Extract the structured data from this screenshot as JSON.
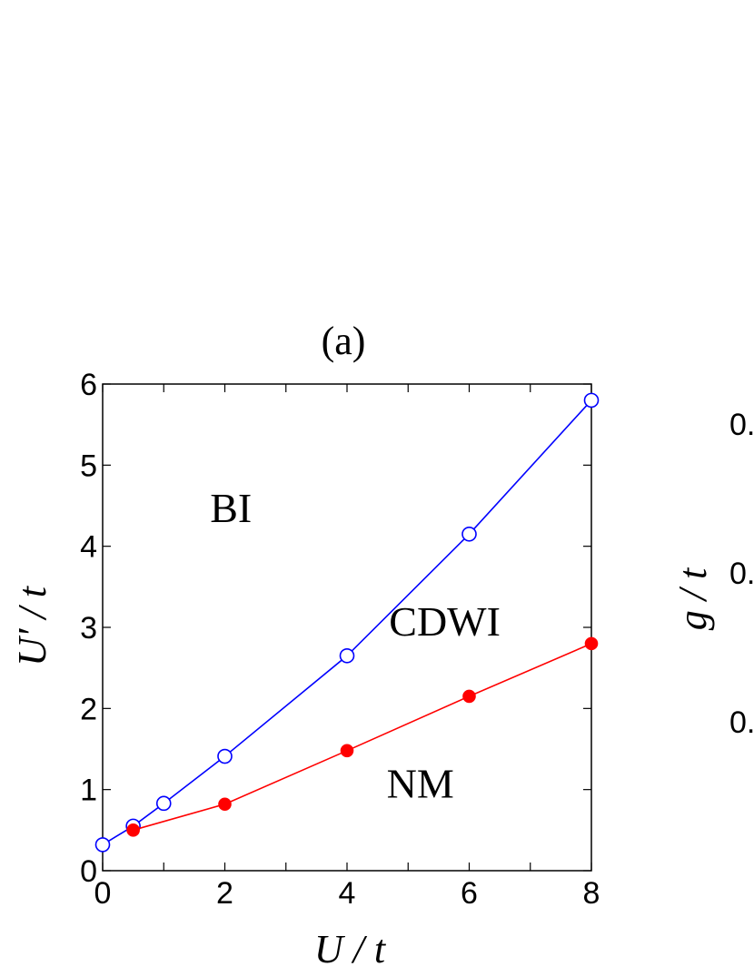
{
  "chart_data": {
    "type": "line",
    "panel_label": "(a)",
    "xlabel": "U / t",
    "ylabel": "U′ / t",
    "xlim": [
      0,
      8
    ],
    "ylim": [
      0,
      6
    ],
    "xticks": [
      0,
      2,
      4,
      6,
      8
    ],
    "yticks": [
      0,
      1,
      2,
      3,
      4,
      5,
      6
    ],
    "x_minor_ticks": [
      1,
      3,
      5,
      7
    ],
    "grid": false,
    "series": [
      {
        "color": "#0000ff",
        "marker": "open-circle",
        "x": [
          0,
          0.5,
          1,
          2,
          4,
          6,
          8
        ],
        "y": [
          0.32,
          0.55,
          0.83,
          1.41,
          2.65,
          4.15,
          5.8
        ]
      },
      {
        "color": "#ff0000",
        "marker": "filled-circle",
        "x": [
          0.5,
          2,
          4,
          6,
          8
        ],
        "y": [
          0.5,
          0.82,
          1.48,
          2.15,
          2.8
        ]
      }
    ],
    "region_labels": [
      {
        "text": "BI",
        "x": 2.1,
        "y": 4.3
      },
      {
        "text": "CDWI",
        "x": 5.6,
        "y": 2.9
      },
      {
        "text": "NM",
        "x": 5.2,
        "y": 0.9
      }
    ]
  },
  "right_panel_partial": {
    "ylabel": "g / t",
    "tick_fragments": [
      "0.",
      "0.",
      "0."
    ]
  }
}
